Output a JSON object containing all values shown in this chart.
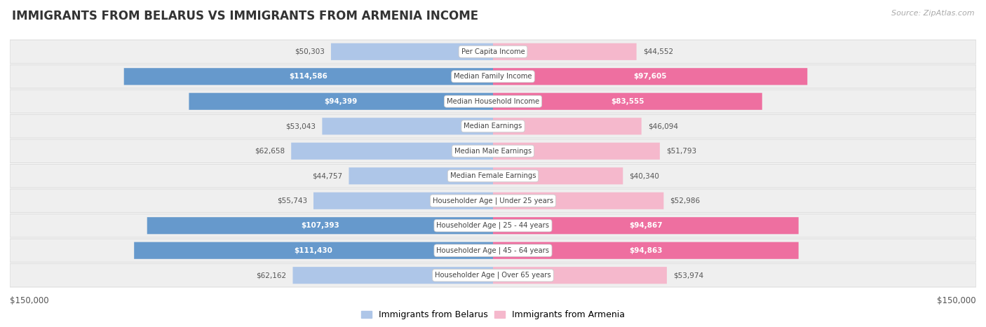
{
  "title": "IMMIGRANTS FROM BELARUS VS IMMIGRANTS FROM ARMENIA INCOME",
  "source": "Source: ZipAtlas.com",
  "categories": [
    "Per Capita Income",
    "Median Family Income",
    "Median Household Income",
    "Median Earnings",
    "Median Male Earnings",
    "Median Female Earnings",
    "Householder Age | Under 25 years",
    "Householder Age | 25 - 44 years",
    "Householder Age | 45 - 64 years",
    "Householder Age | Over 65 years"
  ],
  "belarus_values": [
    50303,
    114586,
    94399,
    53043,
    62658,
    44757,
    55743,
    107393,
    111430,
    62162
  ],
  "armenia_values": [
    44552,
    97605,
    83555,
    46094,
    51793,
    40340,
    52986,
    94867,
    94863,
    53974
  ],
  "belarus_labels": [
    "$50,303",
    "$114,586",
    "$94,399",
    "$53,043",
    "$62,658",
    "$44,757",
    "$55,743",
    "$107,393",
    "$111,430",
    "$62,162"
  ],
  "armenia_labels": [
    "$44,552",
    "$97,605",
    "$83,555",
    "$46,094",
    "$51,793",
    "$40,340",
    "$52,986",
    "$94,867",
    "$94,863",
    "$53,974"
  ],
  "max_value": 150000,
  "belarus_color_light": "#aec6e8",
  "belarus_color_dark": "#6699cc",
  "armenia_color_light": "#f5b8cc",
  "armenia_color_dark": "#ee6fa0",
  "legend_belarus": "Immigrants from Belarus",
  "legend_armenia": "Immigrants from Armenia",
  "row_bg_color": "#efefef",
  "row_border_color": "#dddddd",
  "axis_label_left": "$150,000",
  "axis_label_right": "$150,000",
  "belarus_label_threshold": 75000,
  "armenia_label_threshold": 75000
}
